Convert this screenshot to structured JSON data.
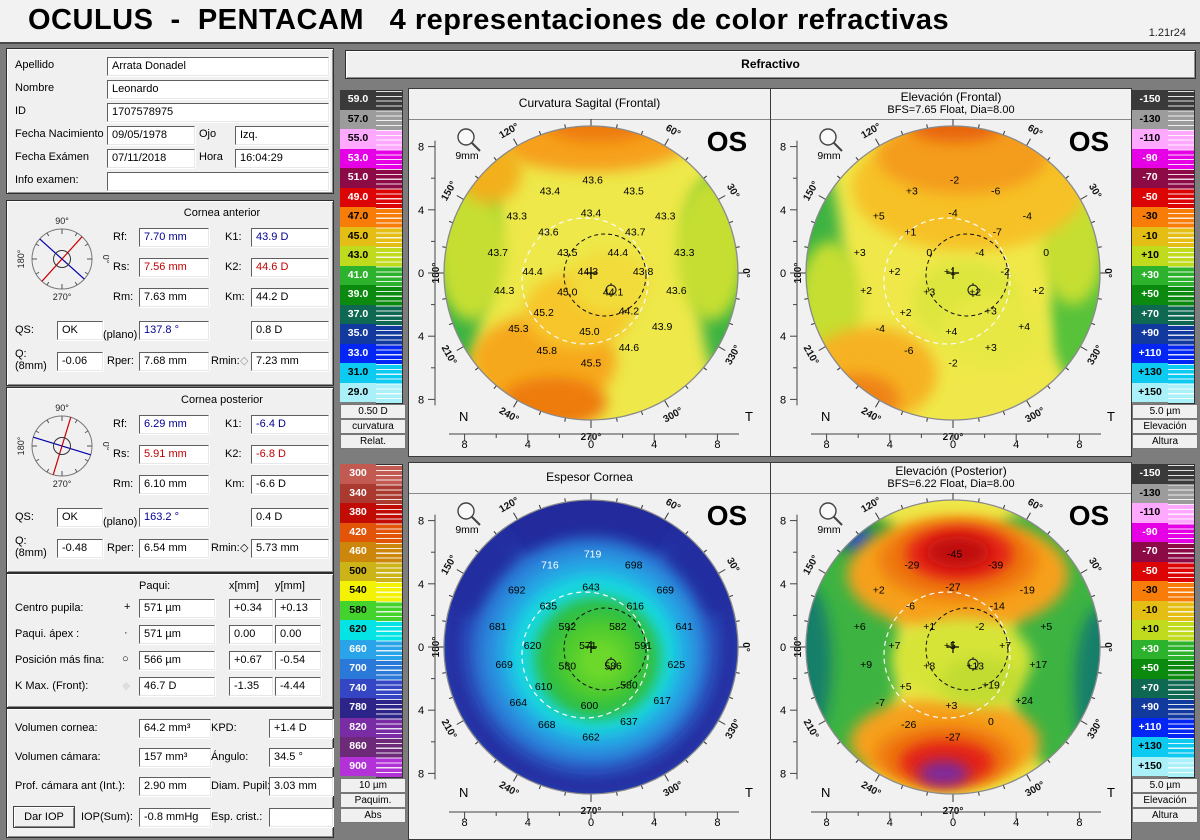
{
  "window": {
    "title": "OCULUS  -  PENTACAM   4 representaciones de color refractivas",
    "version": "1.21r24",
    "tab": "Refractivo"
  },
  "patient": {
    "apellido_label": "Apellido",
    "apellido": "Arrata Donadel",
    "nombre_label": "Nombre",
    "nombre": "Leonardo",
    "id_label": "ID",
    "id": "1707578975",
    "nacimiento_label": "Fecha Nacimiento",
    "nacimiento": "09/05/1978",
    "ojo_label": "Ojo",
    "ojo": "Izq.",
    "examen_label": "Fecha Exámen",
    "examen": "07/11/2018",
    "hora_label": "Hora",
    "hora": "16:04:29",
    "info_label": "Info examen:",
    "info": ""
  },
  "anterior": {
    "title": "Cornea anterior",
    "rf_label": "Rf:",
    "rf": "7.70 mm",
    "k1_label": "K1:",
    "k1": "43.9 D",
    "rs_label": "Rs:",
    "rs": "7.56 mm",
    "k2_label": "K2:",
    "k2": "44.6 D",
    "rm_label": "Rm:",
    "rm": "7.63 mm",
    "km_label": "Km:",
    "km": "44.2 D",
    "qs_label": "QS:",
    "qs": "OK",
    "plano_label": "(plano)",
    "plano": "137.8 °",
    "astig": "0.8 D",
    "q_label": "Q:",
    "q_sub": "(8mm)",
    "q": "-0.06",
    "rper_label": "Rper:",
    "rper": "7.68 mm",
    "rmin_label": "Rmin:",
    "rmin_marker": "◇",
    "rmin": "7.23 mm",
    "axis_red_deg": 48,
    "axis_blue_deg": 138
  },
  "posterior": {
    "title": "Cornea posterior",
    "rf_label": "Rf:",
    "rf": "6.29 mm",
    "k1_label": "K1:",
    "k1": "-6.4 D",
    "rs_label": "Rs:",
    "rs": "5.91 mm",
    "k2_label": "K2:",
    "k2": "-6.8 D",
    "rm_label": "Rm:",
    "rm": "6.10 mm",
    "km_label": "Km:",
    "km": "-6.6 D",
    "qs_label": "QS:",
    "qs": "OK",
    "plano_label": "(plano)",
    "plano": "163.2 °",
    "astig": "0.4 D",
    "q_label": "Q:",
    "q_sub": "(8mm)",
    "q": "-0.48",
    "rper_label": "Rper:",
    "rper": "6.54 mm",
    "rmin_label": "Rmin:",
    "rmin_marker": "◇",
    "rmin": "5.73 mm",
    "axis_red_deg": 73,
    "axis_blue_deg": 163
  },
  "pachy": {
    "paqui_header": "Paqui:",
    "x_header": "x[mm]",
    "y_header": "y[mm]",
    "rows": [
      {
        "label": "Centro pupila:",
        "marker": "+",
        "paqui": "571 µm",
        "x": "+0.34",
        "y": "+0.13"
      },
      {
        "label": "Paqui. ápex :",
        "marker": "·",
        "paqui": "571 µm",
        "x": "0.00",
        "y": "0.00"
      },
      {
        "label": "Posición más fina:",
        "marker": "○",
        "paqui": "566 µm",
        "x": "+0.67",
        "y": "-0.54"
      },
      {
        "label": "K Max. (Front):",
        "marker": "◆",
        "paqui": "46.7 D",
        "x": "-1.35",
        "y": "-4.44"
      }
    ]
  },
  "volume": {
    "rows": [
      {
        "label": "Volumen cornea:",
        "value": "64.2 mm³",
        "label2": "KPD:",
        "value2": "+1.4 D"
      },
      {
        "label": "Volumen cámara:",
        "value": "157 mm³",
        "label2": "Ángulo:",
        "value2": "34.5 °"
      },
      {
        "label": "Prof. cámara ant (Int.):",
        "value": "2.90 mm",
        "label2": "Diam. Pupil:",
        "value2": "3.03 mm"
      }
    ],
    "dar_iop": "Dar IOP",
    "iop_label": "IOP(Sum):",
    "iop": "-0.8 mmHg",
    "esp_label": "Esp. crist.:",
    "esp": ""
  },
  "scales": {
    "curvature": {
      "labels": [
        "59.0",
        "57.0",
        "55.0",
        "53.0",
        "51.0",
        "49.0",
        "47.0",
        "45.0",
        "43.0",
        "41.0",
        "39.0",
        "37.0",
        "35.0",
        "33.0",
        "31.0",
        "29.0"
      ],
      "colors": [
        "#3a3a3a",
        "#9c9c9c",
        "#ffa8ff",
        "#e600e6",
        "#8c0a46",
        "#dc0404",
        "#f87c08",
        "#e4be14",
        "#c0da1e",
        "#2cb22c",
        "#0c8a10",
        "#0e6852",
        "#123a9e",
        "#0426f4",
        "#0ccaf0",
        "#aaf0f8"
      ],
      "footer": [
        "0.50 D",
        "curvatura",
        "Relat."
      ]
    },
    "elevation": {
      "labels": [
        "-150",
        "-130",
        "-110",
        "-90",
        "-70",
        "-50",
        "-30",
        "-10",
        "+10",
        "+30",
        "+50",
        "+70",
        "+90",
        "+110",
        "+130",
        "+150"
      ],
      "colors": [
        "#3a3a3a",
        "#9c9c9c",
        "#ffa8ff",
        "#e600e6",
        "#8c0a46",
        "#dc0404",
        "#f87c08",
        "#e4be14",
        "#c0da1e",
        "#2cb22c",
        "#0c8a10",
        "#0e6852",
        "#123a9e",
        "#0426f4",
        "#0ccaf0",
        "#aaf0f8"
      ],
      "footer": [
        "5.0 µm",
        "Elevación",
        "Altura"
      ]
    },
    "pachy": {
      "labels": [
        "300",
        "340",
        "380",
        "420",
        "460",
        "500",
        "540",
        "580",
        "620",
        "660",
        "700",
        "740",
        "780",
        "820",
        "860",
        "900"
      ],
      "colors": [
        "#c25a52",
        "#aa3a30",
        "#c00c04",
        "#e25408",
        "#cc860c",
        "#ccb418",
        "#f2f202",
        "#44d32c",
        "#04e4e4",
        "#2aa4e8",
        "#2a78d8",
        "#3446c4",
        "#2c2488",
        "#7a2ca4",
        "#6c2a78",
        "#b232d8"
      ],
      "footer": [
        "10 µm",
        "Paquim.",
        "Abs"
      ]
    }
  },
  "map_common": {
    "eye": "OS",
    "zoom": "9mm",
    "n": "N",
    "t": "T",
    "compass_labels": [
      "90°",
      "180°",
      "270°",
      "0°"
    ],
    "angles": [
      {
        "deg": 0,
        "label": "0°"
      },
      {
        "deg": 30,
        "label": "30°"
      },
      {
        "deg": 60,
        "label": "60°"
      },
      {
        "deg": 90,
        "label": "90°"
      },
      {
        "deg": 120,
        "label": "120°"
      },
      {
        "deg": 150,
        "label": "150°"
      },
      {
        "deg": 180,
        "label": "180°"
      },
      {
        "deg": 210,
        "label": "210°"
      },
      {
        "deg": 240,
        "label": "240°"
      },
      {
        "deg": 270,
        "label": "270°"
      },
      {
        "deg": 300,
        "label": "300°"
      },
      {
        "deg": 330,
        "label": "330°"
      }
    ],
    "axis_labels": [
      "8",
      "4",
      "0",
      "4",
      "8"
    ],
    "grid": [
      [
        -2.6,
        5.2
      ],
      [
        0.1,
        5.9
      ],
      [
        2.7,
        5.2
      ],
      [
        -4.7,
        3.6
      ],
      [
        0.0,
        3.8
      ],
      [
        4.7,
        3.6
      ],
      [
        -2.7,
        2.6
      ],
      [
        2.8,
        2.6
      ],
      [
        -5.9,
        1.3
      ],
      [
        -1.5,
        1.3
      ],
      [
        1.7,
        1.3
      ],
      [
        5.9,
        1.3
      ],
      [
        -3.7,
        0.1
      ],
      [
        -0.2,
        0.1
      ],
      [
        3.3,
        0.1
      ],
      [
        -5.5,
        -1.1
      ],
      [
        -1.5,
        -1.2
      ],
      [
        1.4,
        -1.2
      ],
      [
        5.4,
        -1.1
      ],
      [
        -3.0,
        -2.5
      ],
      [
        2.4,
        -2.4
      ],
      [
        -4.6,
        -3.5
      ],
      [
        -0.1,
        -3.7
      ],
      [
        4.5,
        -3.4
      ],
      [
        -2.8,
        -4.9
      ],
      [
        2.4,
        -4.7
      ],
      [
        0.0,
        -5.7
      ]
    ]
  },
  "chart_data": [
    {
      "type": "heatmap",
      "title": "Curvatura Sagital (Frontal)",
      "subtitle": "",
      "scale": "curvature",
      "scale_side": "left",
      "unit": "D",
      "values": [
        "43.4",
        "43.6",
        "43.5",
        "43.3",
        "43.4",
        "43.3",
        "43.6",
        "43.7",
        "43.7",
        "43.5",
        "44.4",
        "43.3",
        "44.4",
        "44.3",
        "43.8",
        "44.3",
        "45.0",
        "44.1",
        "43.6",
        "45.2",
        "44.2",
        "45.3",
        "45.0",
        "43.9",
        "45.8",
        "44.6",
        "45.5"
      ],
      "white_values": []
    },
    {
      "type": "heatmap",
      "title": "Elevación (Frontal)",
      "subtitle": "BFS=7.65 Float, Dia=8.00",
      "scale": "elevation",
      "scale_side": "right",
      "unit": "µm",
      "values": [
        "+3",
        "-2",
        "-6",
        "+5",
        "-4",
        "-4",
        "+1",
        "-7",
        "+3",
        "0",
        "-4",
        "0",
        "+2",
        "+1",
        "-2",
        "+2",
        "+3",
        "+2",
        "+2",
        "+2",
        "+3",
        "-4",
        "+4",
        "+4",
        "-6",
        "+3",
        "-2"
      ],
      "white_values": []
    },
    {
      "type": "heatmap",
      "title": "Espesor Cornea",
      "subtitle": "",
      "scale": "pachy",
      "scale_side": "left",
      "unit": "µm",
      "values": [
        "716",
        "719",
        "698",
        "692",
        "643",
        "669",
        "635",
        "616",
        "681",
        "592",
        "582",
        "641",
        "620",
        "571",
        "591",
        "669",
        "580",
        "586",
        "625",
        "610",
        "580",
        "664",
        "600",
        "617",
        "668",
        "637",
        "662"
      ],
      "white_values": [
        0,
        1
      ]
    },
    {
      "type": "heatmap",
      "title": "Elevación (Posterior)",
      "subtitle": "BFS=6.22 Float, Dia=8.00",
      "scale": "elevation",
      "scale_side": "right",
      "unit": "µm",
      "values": [
        "-29",
        "-45",
        "-39",
        "+2",
        "-27",
        "-19",
        "-6",
        "-14",
        "+6",
        "+1",
        "-2",
        "+5",
        "+7",
        "+5",
        "+7",
        "+9",
        "+8",
        "+13",
        "+17",
        "+5",
        "+19",
        "-7",
        "+3",
        "+24",
        "-26",
        "0",
        "-27"
      ],
      "white_values": []
    }
  ]
}
